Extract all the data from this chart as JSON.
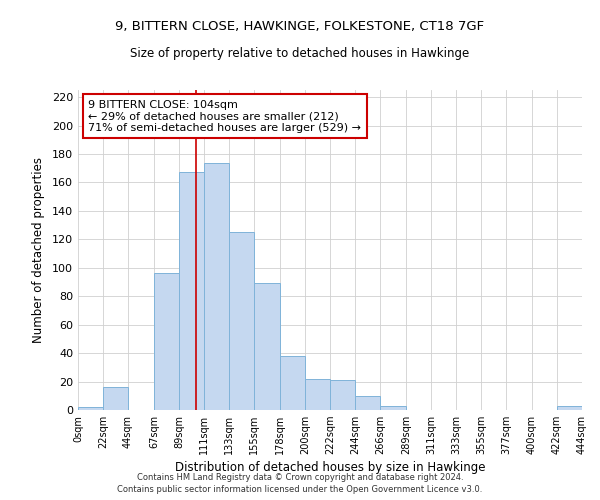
{
  "title": "9, BITTERN CLOSE, HAWKINGE, FOLKESTONE, CT18 7GF",
  "subtitle": "Size of property relative to detached houses in Hawkinge",
  "xlabel": "Distribution of detached houses by size in Hawkinge",
  "ylabel": "Number of detached properties",
  "bar_color": "#c5d8f0",
  "bar_edge_color": "#7fb3d9",
  "bin_edges": [
    0,
    22,
    44,
    67,
    89,
    111,
    133,
    155,
    178,
    200,
    222,
    244,
    266,
    289,
    311,
    333,
    355,
    377,
    400,
    422,
    444
  ],
  "bar_heights": [
    2,
    16,
    0,
    96,
    167,
    174,
    125,
    89,
    38,
    22,
    21,
    10,
    3,
    0,
    0,
    0,
    0,
    0,
    0,
    3
  ],
  "tick_labels": [
    "0sqm",
    "22sqm",
    "44sqm",
    "67sqm",
    "89sqm",
    "111sqm",
    "133sqm",
    "155sqm",
    "178sqm",
    "200sqm",
    "222sqm",
    "244sqm",
    "266sqm",
    "289sqm",
    "311sqm",
    "333sqm",
    "355sqm",
    "377sqm",
    "400sqm",
    "422sqm",
    "444sqm"
  ],
  "ylim": [
    0,
    225
  ],
  "yticks": [
    0,
    20,
    40,
    60,
    80,
    100,
    120,
    140,
    160,
    180,
    200,
    220
  ],
  "vline_x": 104,
  "vline_color": "#cc0000",
  "annotation_title": "9 BITTERN CLOSE: 104sqm",
  "annotation_line1": "← 29% of detached houses are smaller (212)",
  "annotation_line2": "71% of semi-detached houses are larger (529) →",
  "annotation_box_color": "#ffffff",
  "annotation_box_edge": "#cc0000",
  "footer1": "Contains HM Land Registry data © Crown copyright and database right 2024.",
  "footer2": "Contains public sector information licensed under the Open Government Licence v3.0.",
  "background_color": "#ffffff",
  "grid_color": "#d0d0d0"
}
